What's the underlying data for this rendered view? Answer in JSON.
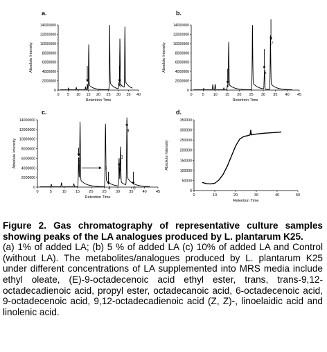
{
  "chart_data": [
    {
      "type": "line",
      "panel_label": "a.",
      "xlabel": "Retention Time",
      "ylabel": "Absolute Intensity",
      "xlim": [
        0,
        40
      ],
      "ylim": [
        0,
        14000000
      ],
      "xticks": [
        "0",
        "5",
        "10",
        "15",
        "20",
        "25",
        "30",
        "35",
        "40"
      ],
      "yticks": [
        "0",
        "2000000",
        "4000000",
        "6000000",
        "8000000",
        "10000000",
        "12000000",
        "14000000"
      ],
      "peaks": [
        {
          "x": 5.2,
          "y": 400000
        },
        {
          "x": 9.0,
          "y": 500000
        },
        {
          "x": 13.6,
          "y": 600000
        },
        {
          "x": 14.5,
          "y": 1300000
        },
        {
          "x": 15.2,
          "y": 8600000
        },
        {
          "x": 25.6,
          "y": 12500000
        },
        {
          "x": 30.2,
          "y": 1400000
        },
        {
          "x": 30.7,
          "y": 9600000
        },
        {
          "x": 33.2,
          "y": 11600000
        }
      ],
      "annotations": [
        {
          "x": 14.5,
          "label": "",
          "arrow_top": 5200000,
          "arrow_bottom": 1700000
        },
        {
          "x": 30.5,
          "label": "6",
          "arrow_top": 5200000,
          "arrow_bottom": 1700000
        }
      ]
    },
    {
      "type": "line",
      "panel_label": "b.",
      "xlabel": "Retention Time",
      "ylabel": "Absolute Intensity",
      "xlim": [
        0,
        45
      ],
      "ylim": [
        0,
        14000000
      ],
      "xticks": [
        "0",
        "5",
        "10",
        "15",
        "20",
        "25",
        "30",
        "35",
        "40",
        "45"
      ],
      "yticks": [
        "0",
        "2000000",
        "4000000",
        "6000000",
        "8000000",
        "10000000",
        "12000000",
        "14000000"
      ],
      "peaks": [
        {
          "x": 5.2,
          "y": 300000
        },
        {
          "x": 9.0,
          "y": 1100000
        },
        {
          "x": 10.0,
          "y": 1200000
        },
        {
          "x": 13.6,
          "y": 400000
        },
        {
          "x": 15.1,
          "y": 1000000
        },
        {
          "x": 15.6,
          "y": 9100000
        },
        {
          "x": 25.5,
          "y": 12300000
        },
        {
          "x": 30.5,
          "y": 4200000
        },
        {
          "x": 33.0,
          "y": 10300000
        }
      ],
      "annotations": [
        {
          "x": 15.2,
          "label": "",
          "arrow_top": 4600000,
          "arrow_bottom": 1300000
        },
        {
          "x": 30.4,
          "label": "5",
          "arrow_top": 8800000,
          "arrow_bottom": 4500000
        },
        {
          "x": 33.2,
          "label": "7",
          "arrow_top": 15200000,
          "arrow_bottom": 10700000
        }
      ]
    },
    {
      "type": "line",
      "panel_label": "c.",
      "xlabel": "Retention Time",
      "ylabel": "Absolute Intensity",
      "xlim": [
        0,
        45
      ],
      "ylim": [
        0,
        14000000
      ],
      "xticks": [
        "0",
        "5",
        "10",
        "15",
        "20",
        "25",
        "30",
        "35",
        "40",
        "45"
      ],
      "yticks": [
        "0",
        "2000000",
        "4000000",
        "6000000",
        "8000000",
        "10000000",
        "12000000",
        "14000000"
      ],
      "peaks": [
        {
          "x": 5.2,
          "y": 500000
        },
        {
          "x": 9.0,
          "y": 800000
        },
        {
          "x": 13.6,
          "y": 600000
        },
        {
          "x": 15.4,
          "y": 6100000
        },
        {
          "x": 15.9,
          "y": 12000000
        },
        {
          "x": 25.4,
          "y": 11600000
        },
        {
          "x": 30.5,
          "y": 5800000
        },
        {
          "x": 31.0,
          "y": 7300000
        },
        {
          "x": 33.4,
          "y": 12800000
        }
      ],
      "annotations": [
        {
          "x": 15.4,
          "label": "2",
          "arrow_top": 8200000,
          "arrow_bottom": 6400000
        },
        {
          "x": 26.5,
          "label": "4",
          "arrow_top": 3200000,
          "arrow_bottom": 500000
        },
        {
          "x": 30.5,
          "label": "5",
          "arrow_top": 6000000,
          "arrow_bottom": 4300000
        },
        {
          "x": 33.4,
          "label": "8",
          "arrow_top": 14500000,
          "arrow_bottom": 12500000
        },
        {
          "x": 35.8,
          "label": "0",
          "arrow_top": 3200000,
          "arrow_bottom": 500000
        }
      ],
      "label_3": {
        "text": "3",
        "x_from": 16.5,
        "x_to": 24.0,
        "y": 4000000
      },
      "label_1": {
        "text": "1",
        "x": 31.2,
        "y": 6000000
      }
    },
    {
      "type": "line",
      "panel_label": "d.",
      "xlabel": "Retention Time",
      "ylabel": "Absolute Intensity",
      "xlim": [
        0,
        50
      ],
      "ylim": [
        0,
        350000
      ],
      "xticks": [
        "0",
        "10",
        "20",
        "30",
        "40",
        "50"
      ],
      "yticks": [
        "0",
        "50000",
        "100000",
        "150000",
        "200000",
        "250000",
        "300000",
        "350000"
      ],
      "curve": [
        {
          "x": 4.0,
          "y": 40000
        },
        {
          "x": 6.0,
          "y": 34000
        },
        {
          "x": 8.0,
          "y": 33000
        },
        {
          "x": 10.0,
          "y": 36000
        },
        {
          "x": 12.0,
          "y": 52000
        },
        {
          "x": 14.0,
          "y": 80000
        },
        {
          "x": 16.0,
          "y": 120000
        },
        {
          "x": 18.0,
          "y": 170000
        },
        {
          "x": 20.0,
          "y": 220000
        },
        {
          "x": 22.0,
          "y": 255000
        },
        {
          "x": 24.0,
          "y": 268000
        },
        {
          "x": 26.0,
          "y": 272000
        },
        {
          "x": 27.0,
          "y": 276000
        },
        {
          "x": 27.3,
          "y": 300000
        },
        {
          "x": 27.6,
          "y": 276000
        },
        {
          "x": 30.0,
          "y": 280000
        },
        {
          "x": 34.0,
          "y": 284000
        },
        {
          "x": 38.0,
          "y": 287000
        },
        {
          "x": 42.0,
          "y": 290000
        }
      ]
    }
  ],
  "caption": {
    "title": "Figure 2. Gas chromatography of representative culture samples showing peaks of the LA analogues produced by L. plantarum K25.",
    "body": "(a) 1% of added LA; (b) 5 % of added LA (c) 10% of added LA and Control (without LA). The metabolites/analogues produced by L. plantarum K25 under different concentrations of LA supplemented into MRS media include ethyl oleate, (E)-9-octadecenoic acid ethyl ester, trans, trans-9,12-octadecadienoic acid, propyl ester, octadecanoic acid, 6-octadecenoic acid, 9-octadecenoic acid, 9,12-octadecadienoic acid (Z, Z)-, linoelaidic acid and linolenic acid."
  }
}
